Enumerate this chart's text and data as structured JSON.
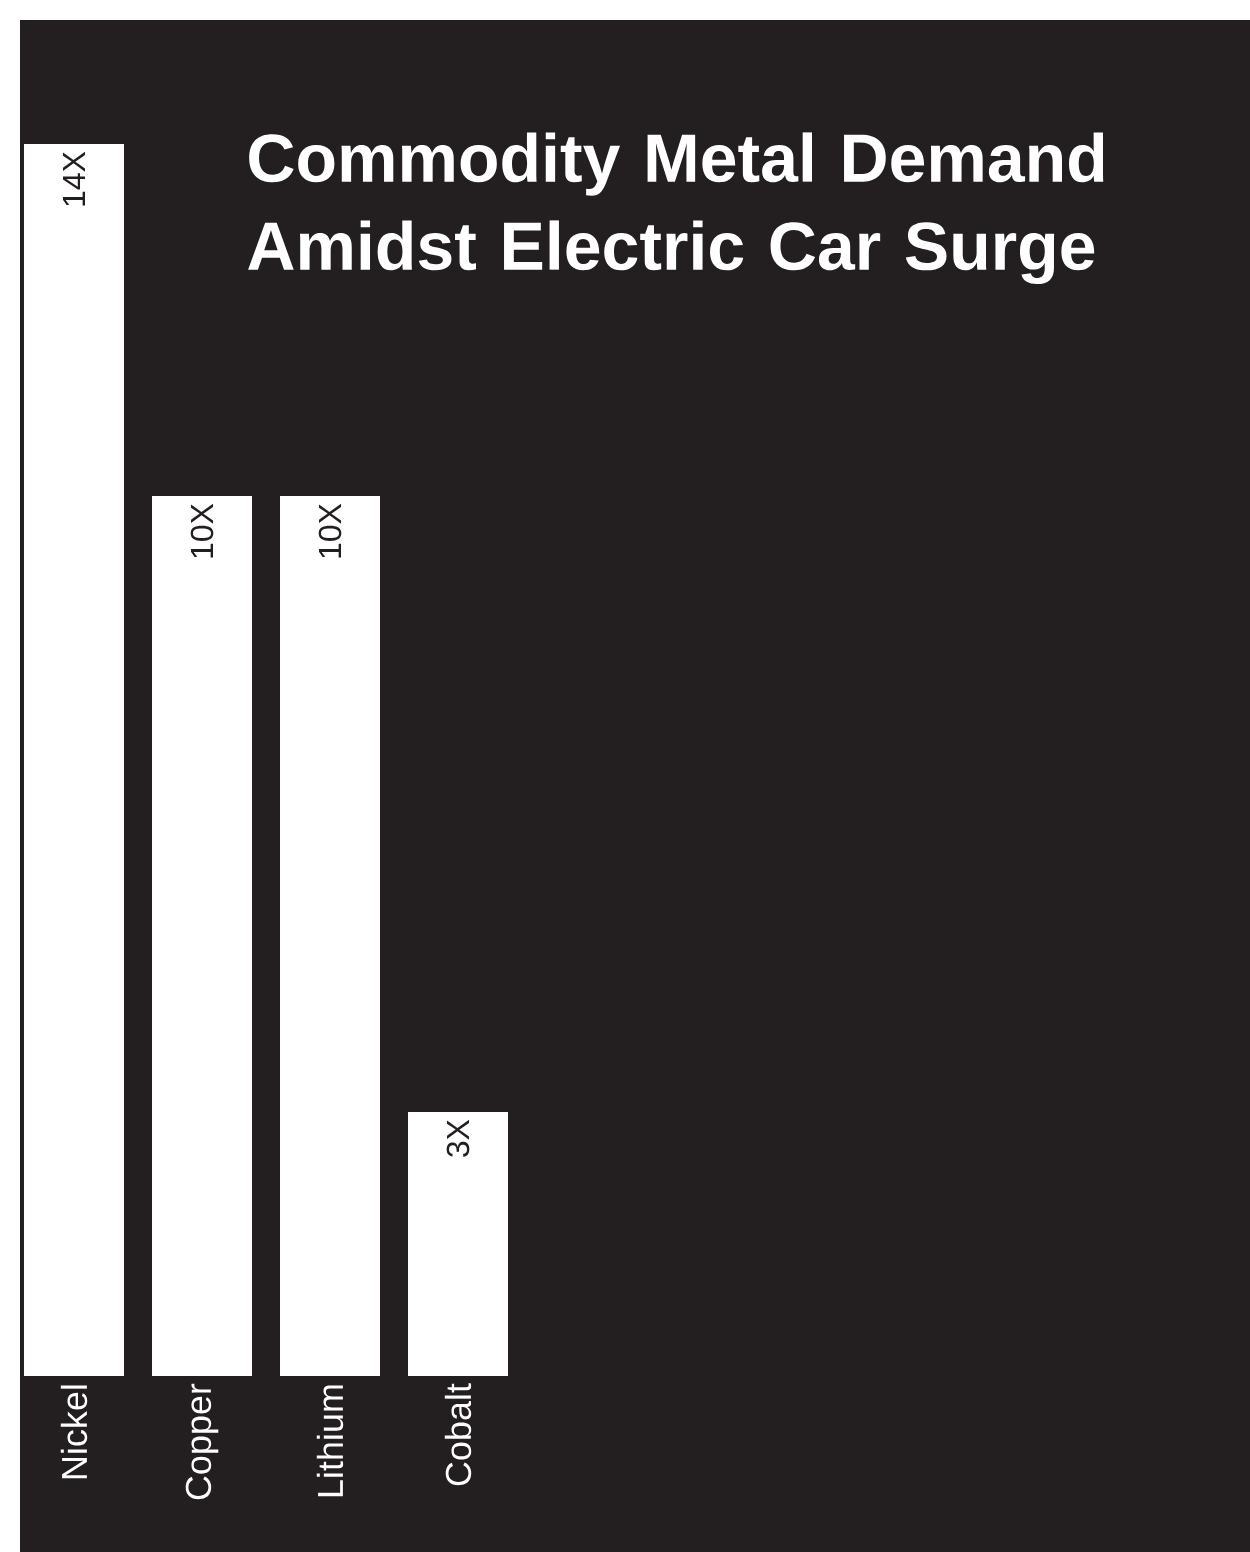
{
  "chart_data": {
    "type": "bar",
    "title": "Commodity Metal Demand Amidst Electric Car Surge",
    "categories": [
      "Nickel",
      "Copper",
      "Lithium",
      "Cobalt"
    ],
    "values": [
      14,
      10,
      10,
      3
    ],
    "value_labels": [
      "14X",
      "10X",
      "10X",
      "3X"
    ],
    "color": "#ffffff"
  }
}
